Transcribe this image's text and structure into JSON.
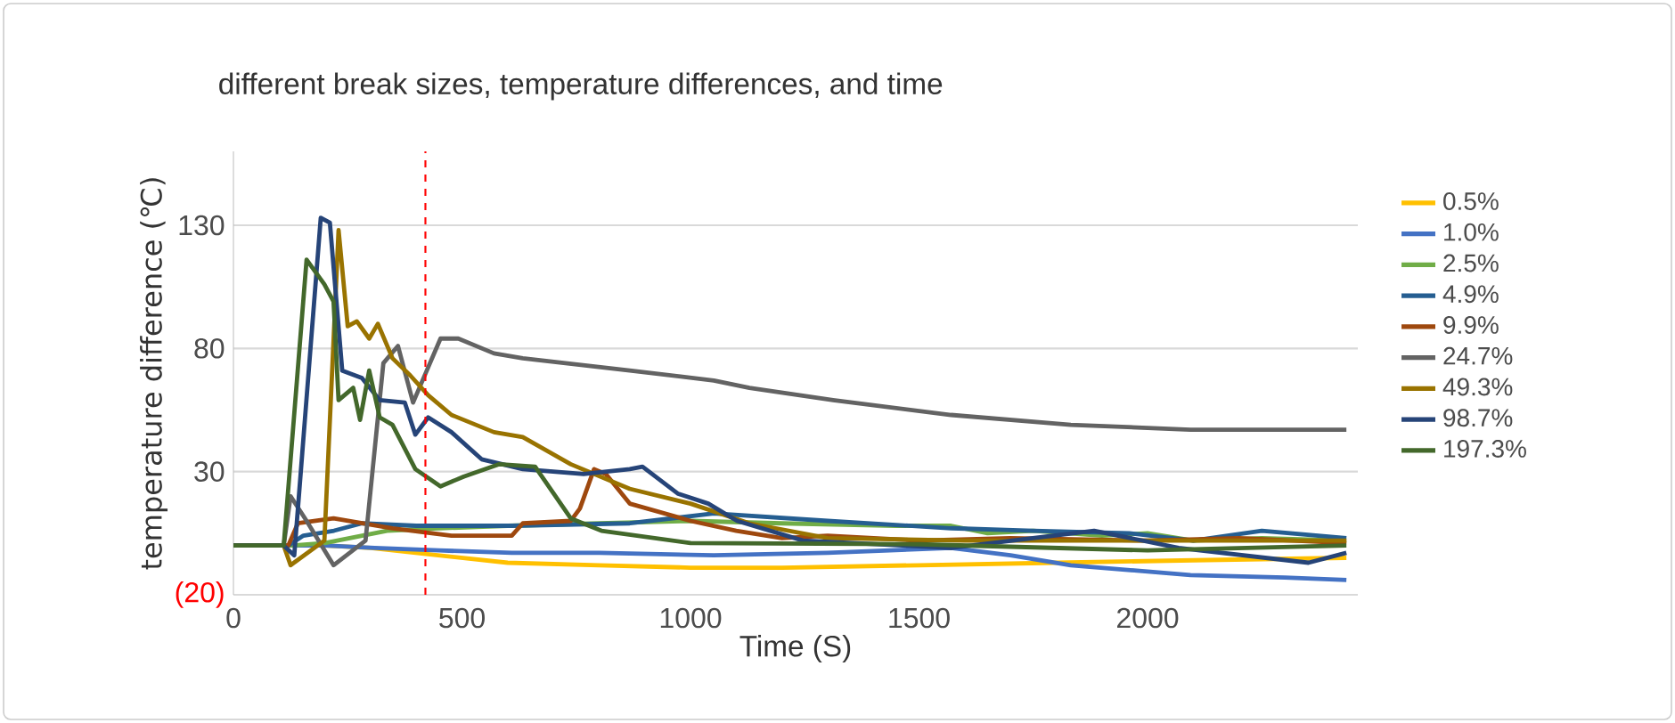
{
  "chart_data": {
    "type": "line",
    "title": "different break sizes, temperature differences, and time",
    "xlabel": "Time (S)",
    "ylabel": "temperature difference (℃)",
    "xlim": [
      0,
      2460
    ],
    "ylim": [
      -20,
      160
    ],
    "xticks": [
      0,
      500,
      1000,
      1500,
      2000
    ],
    "yticks": [
      {
        "value": -20,
        "label": "(20)"
      },
      30,
      80,
      130
    ],
    "grid": "y",
    "legend": "right",
    "ref_lines": [
      {
        "axis": "x",
        "value": 420,
        "color": "#ff0000",
        "line_style": "dashed"
      }
    ],
    "series": [
      {
        "name": "0.5%",
        "color": "#ffc000",
        "x": [
          200,
          300,
          450,
          600,
          800,
          1000,
          1200,
          1500,
          1800,
          2100,
          2435
        ],
        "values": [
          0,
          -1,
          -4,
          -7,
          -8,
          -9,
          -9,
          -8,
          -7,
          -6,
          -5
        ]
      },
      {
        "name": "1.0%",
        "color": "#4472c4",
        "x": [
          0,
          130,
          200,
          309,
          450,
          609,
          800,
          1051,
          1300,
          1570,
          1700,
          1832,
          2094,
          2300,
          2435
        ],
        "values": [
          0,
          0,
          0,
          -1,
          -2,
          -3,
          -3,
          -4,
          -3,
          -1,
          -4,
          -8,
          -12,
          -13,
          -14
        ]
      },
      {
        "name": "2.5%",
        "color": "#70ad47",
        "x": [
          0,
          130,
          200,
          336,
          450,
          600,
          800,
          1000,
          1200,
          1450,
          1570,
          1650,
          1750,
          1900,
          2000,
          2100,
          2250,
          2435
        ],
        "values": [
          0,
          0,
          1,
          6,
          7,
          8,
          9,
          10,
          9,
          8,
          8,
          5,
          6,
          4,
          5,
          2,
          3,
          2
        ]
      },
      {
        "name": "4.9%",
        "color": "#255e91",
        "x": [
          0,
          120,
          153,
          220,
          281,
          400,
          609,
          867,
          1051,
          1300,
          1570,
          1750,
          1960,
          2100,
          2250,
          2435
        ],
        "values": [
          0,
          0,
          4,
          6,
          9,
          8,
          8,
          9,
          13,
          10,
          7,
          6,
          5,
          2,
          6,
          3
        ]
      },
      {
        "name": "9.9%",
        "color": "#9e480e",
        "x": [
          0,
          120,
          141,
          219,
          348,
          477,
          609,
          633,
          738,
          758,
          789,
          815,
          867,
          1000,
          1100,
          1200,
          1300,
          1500,
          1700,
          2000,
          2200,
          2435
        ],
        "values": [
          0,
          0,
          9,
          11,
          7,
          4,
          4,
          9,
          10,
          15,
          31,
          29,
          17,
          10,
          6,
          3,
          4,
          2,
          3,
          2,
          3,
          1
        ]
      },
      {
        "name": "24.7%",
        "color": "#636363",
        "x": [
          0,
          110,
          125,
          160,
          219,
          289,
          328,
          360,
          393,
          453,
          492,
          570,
          633,
          867,
          1051,
          1129,
          1312,
          1570,
          1832,
          2094,
          2435
        ],
        "values": [
          0,
          0,
          20,
          10,
          -8,
          2,
          74,
          81,
          58,
          84,
          84,
          78,
          76,
          71,
          67,
          64,
          59,
          53,
          49,
          47,
          47
        ]
      },
      {
        "name": "49.3%",
        "color": "#997300",
        "x": [
          0,
          110,
          125,
          199,
          230,
          250,
          270,
          297,
          316,
          348,
          387,
          426,
          477,
          570,
          633,
          738,
          867,
          1000,
          1129,
          1300,
          1600,
          2000,
          2435
        ],
        "values": [
          0,
          0,
          -8,
          2,
          128,
          89,
          91,
          84,
          90,
          76,
          69,
          61,
          53,
          46,
          44,
          33,
          23,
          17,
          9,
          3,
          2,
          2,
          2
        ]
      },
      {
        "name": "98.7%",
        "color": "#264478",
        "x": [
          0,
          110,
          133,
          191,
          211,
          238,
          281,
          320,
          375,
          398,
          426,
          477,
          543,
          633,
          766,
          867,
          895,
          973,
          1039,
          1102,
          1246,
          1570,
          1883,
          2068,
          2352,
          2435
        ],
        "values": [
          0,
          0,
          -4,
          133,
          131,
          71,
          68,
          59,
          58,
          45,
          52,
          46,
          35,
          31,
          29,
          31,
          32,
          21,
          17,
          10,
          2,
          -1,
          6,
          -1,
          -7,
          -3
        ]
      },
      {
        "name": "197.3%",
        "color": "#43682b",
        "x": [
          0,
          110,
          160,
          199,
          219,
          230,
          262,
          277,
          297,
          320,
          348,
          398,
          453,
          504,
          582,
          660,
          738,
          805,
          1000,
          1500,
          2000,
          2435
        ],
        "values": [
          0,
          0,
          116,
          106,
          99,
          59,
          64,
          51,
          71,
          52,
          49,
          31,
          24,
          28,
          33,
          32,
          11,
          6,
          1,
          0.5,
          -2,
          0
        ]
      }
    ]
  }
}
